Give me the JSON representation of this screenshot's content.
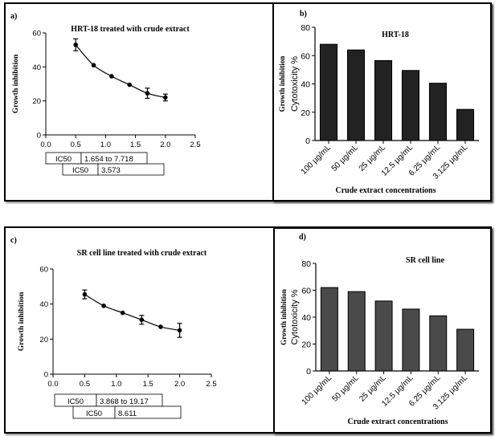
{
  "colors": {
    "bar": "#4a4a4a",
    "bar_dark": "#222222",
    "line": "#000000"
  },
  "chart_data": [
    {
      "panel": "a)",
      "type": "scatter",
      "title": "HRT-18 treated with crude extract",
      "xlabel": "",
      "ylabel": "Growth inhibition",
      "xlim": [
        0.0,
        2.5
      ],
      "ylim": [
        0,
        60
      ],
      "xticks": [
        "0.0",
        "0.5",
        "1.0",
        "1.5",
        "2.0",
        "2.5"
      ],
      "yticks": [
        "0",
        "20",
        "40",
        "60"
      ],
      "x": [
        0.5,
        0.8,
        1.1,
        1.4,
        1.7,
        2.0
      ],
      "y": [
        53,
        41,
        34.5,
        29.5,
        24.5,
        22
      ],
      "error": [
        3.5,
        0,
        0,
        0,
        3,
        2
      ],
      "fit": "curve",
      "ic50_table": [
        {
          "label": "IC50",
          "value": "1.654 to 7.718"
        },
        {
          "label": "IC50",
          "value": "3.573"
        }
      ]
    },
    {
      "panel": "b)",
      "type": "bar",
      "title": "HRT-18",
      "ylabel_secondary": "Growth inhibition",
      "ylabel": "Cytotoxicity %",
      "xlabel": "Crude extract concentrations",
      "categories": [
        "100 µg/mL",
        "50 µg/mL",
        "25 µg/mL",
        "12.5 µg/mL",
        "6.25 µg/mL",
        "3.125 µg/mL"
      ],
      "values": [
        68,
        64,
        56.5,
        49.5,
        40.5,
        22
      ],
      "ylim": [
        0,
        80
      ],
      "yticks": [
        "0",
        "20",
        "40",
        "60",
        "80"
      ]
    },
    {
      "panel": "c)",
      "type": "scatter",
      "title": "SR cell line treated with crude extract",
      "xlabel": "",
      "ylabel": "Growth inhibition",
      "xlim": [
        0.0,
        2.5
      ],
      "ylim": [
        0,
        60
      ],
      "xticks": [
        "0.0",
        "0.5",
        "1.0",
        "1.5",
        "2.0",
        "2.5"
      ],
      "yticks": [
        "0",
        "20",
        "40",
        "60"
      ],
      "x": [
        0.5,
        0.8,
        1.1,
        1.4,
        1.7,
        2.0
      ],
      "y": [
        45.5,
        39,
        35,
        31,
        27,
        25
      ],
      "error": [
        2.5,
        0,
        0,
        2.5,
        0,
        4
      ],
      "fit": "curve",
      "ic50_table": [
        {
          "label": "IC50",
          "value": "3.868 to 19.17"
        },
        {
          "label": "IC50",
          "value": "8.611"
        }
      ]
    },
    {
      "panel": "d)",
      "type": "bar",
      "title": "SR cell line",
      "ylabel_secondary": "Growth inhibition",
      "ylabel": "Cytotoxicity %",
      "xlabel": "Crude extract concentrations",
      "categories": [
        "100 µg/mL",
        "50 µg/mL",
        "25 µg/mL",
        "12.5 µg/mL",
        "6.25 µg/mL",
        "3.125 µg/mL"
      ],
      "values": [
        62,
        59,
        52,
        46,
        41,
        31
      ],
      "ylim": [
        0,
        80
      ],
      "yticks": [
        "0",
        "20",
        "40",
        "60",
        "80"
      ]
    }
  ]
}
